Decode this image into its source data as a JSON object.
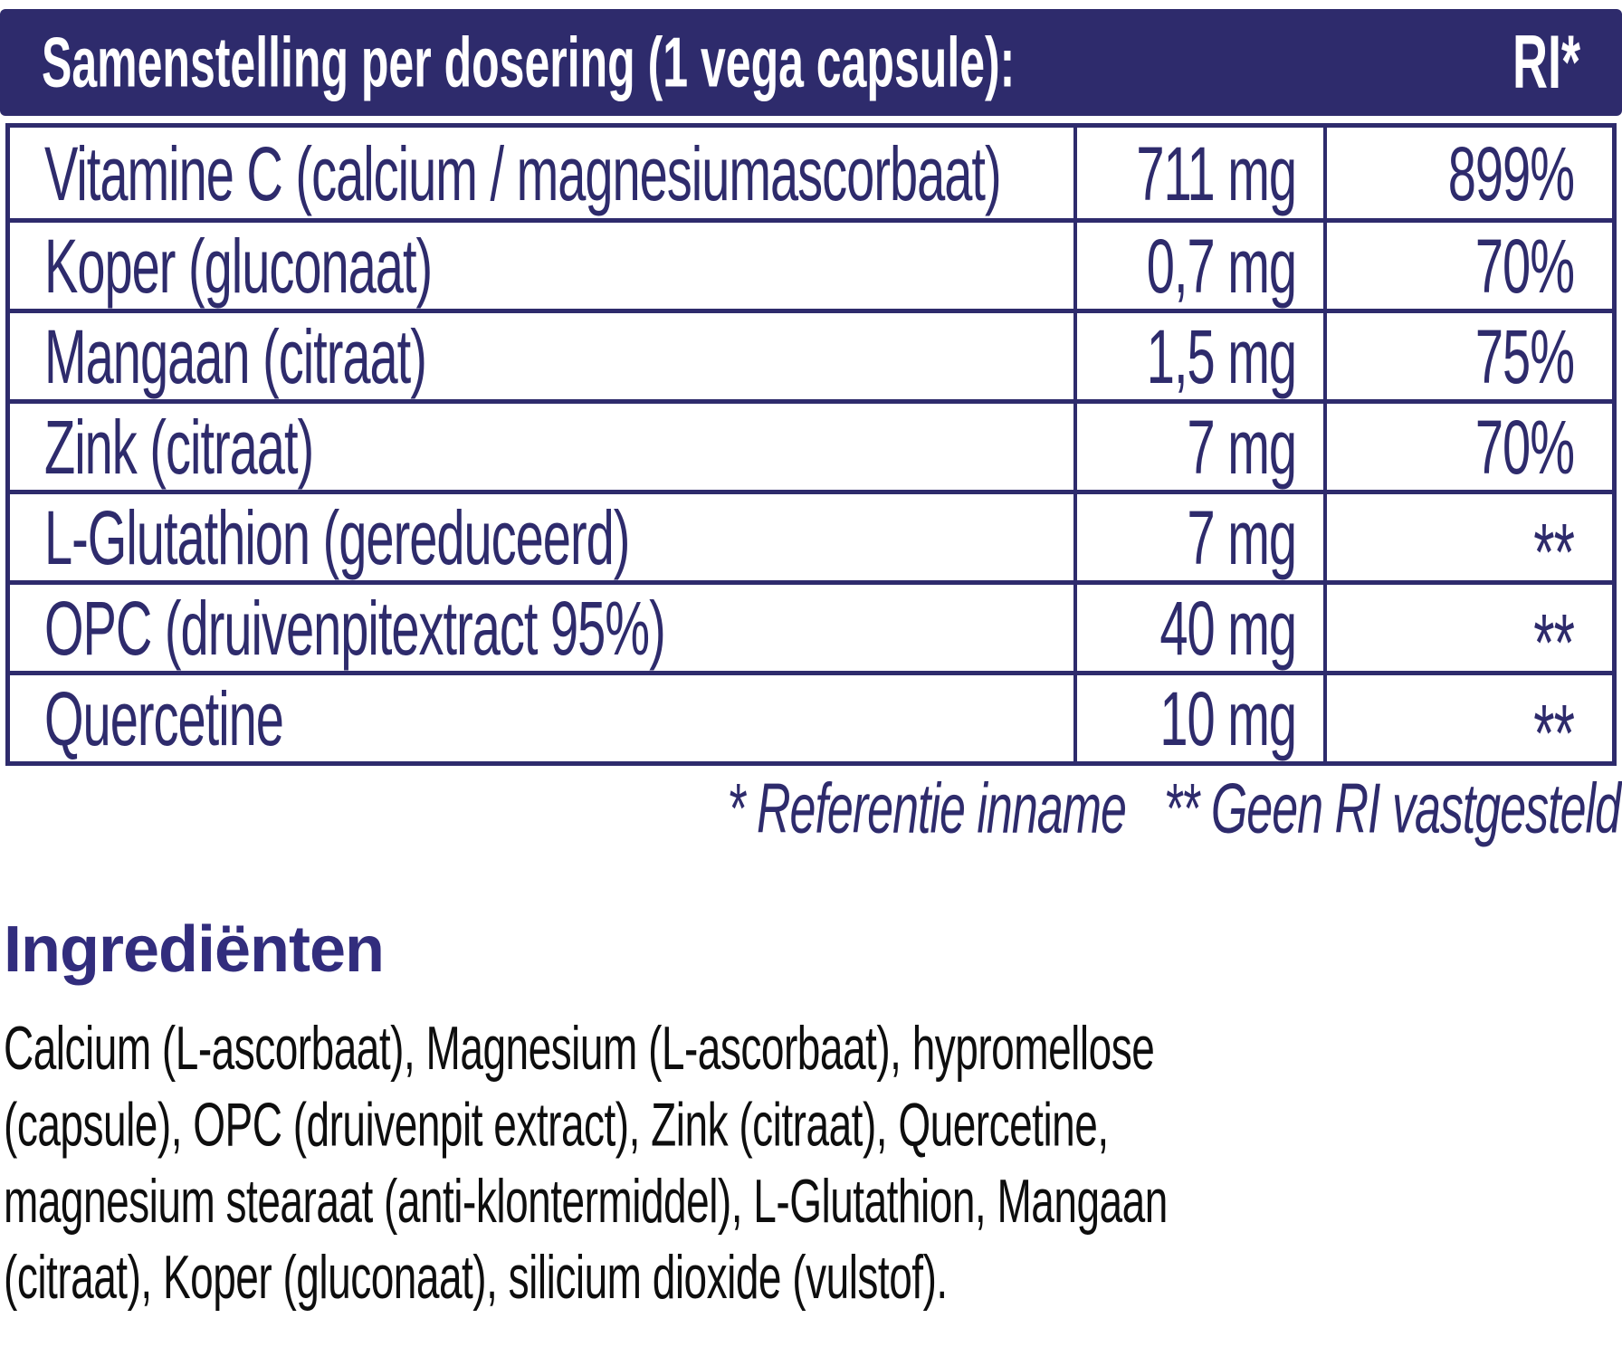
{
  "colors": {
    "navy": "#2e2b6c",
    "heading": "#322d7d",
    "ink": "#0e0e0e",
    "paper": "#ffffff"
  },
  "header": {
    "title": "Samenstelling per dosering (1 vega capsule):",
    "ri_label": "RI*"
  },
  "table": {
    "rows": [
      {
        "name": "Vitamine C (calcium / magnesiumascorbaat)",
        "amount": "711 mg",
        "ri": "899%"
      },
      {
        "name": "Koper (gluconaat)",
        "amount": "0,7 mg",
        "ri": "70%"
      },
      {
        "name": "Mangaan (citraat)",
        "amount": "1,5 mg",
        "ri": "75%"
      },
      {
        "name": "Zink (citraat)",
        "amount": "7 mg",
        "ri": "70%"
      },
      {
        "name": "L-Glutathion (gereduceerd)",
        "amount": "7 mg",
        "ri": "**"
      },
      {
        "name": "OPC (druivenpitextract 95%)",
        "amount": "40 mg",
        "ri": "**"
      },
      {
        "name": "Quercetine",
        "amount": "10 mg",
        "ri": "**"
      }
    ]
  },
  "footnotes": {
    "reference": "* Referentie inname",
    "no_ri": "** Geen RI vastgesteld"
  },
  "ingredients": {
    "heading": "Ingrediënten",
    "text": "Calcium (L-ascorbaat), Magnesium (L-ascorbaat), hypromellose\n(capsule), OPC (druivenpit extract), Zink (citraat), Quercetine,\nmagnesium stearaat (anti-klontermiddel), L-Glutathion, Mangaan\n(citraat), Koper (gluconaat), silicium dioxide (vulstof)."
  }
}
